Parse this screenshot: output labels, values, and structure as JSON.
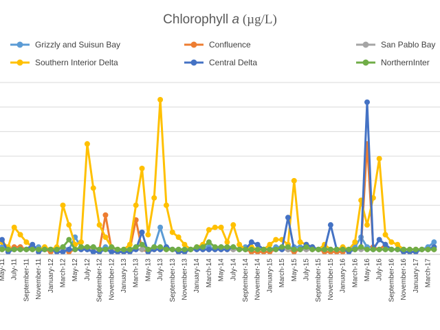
{
  "chart_data": {
    "type": "line",
    "title": "Chlorophyll a (µg/L)",
    "title_parts": {
      "prefix": "Chlorophyll ",
      "italic": "a",
      "suffix": " (µg/L)"
    },
    "xlabel": "",
    "ylabel": "",
    "ylim": [
      0,
      70
    ],
    "grid": true,
    "legend_position": "top",
    "x_tick_labels": [
      "May-11",
      "July-11",
      "September-11",
      "November-11",
      "January-12",
      "March-12",
      "May-12",
      "July-12",
      "September-12",
      "November-12",
      "January-13",
      "March-13",
      "May-13",
      "July-13",
      "September-13",
      "November-13",
      "January-14",
      "March-14",
      "May-14",
      "July-14",
      "September-14",
      "November-14",
      "January-15",
      "March-15",
      "May-15",
      "July-15",
      "September-15",
      "November-15",
      "January-16",
      "March-16",
      "May-16",
      "July-16",
      "September-16",
      "November-16",
      "January-17",
      "March-17"
    ],
    "categories": [
      "May-11",
      "Jun-11",
      "Jul-11",
      "Aug-11",
      "Sep-11",
      "Oct-11",
      "Nov-11",
      "Dec-11",
      "Jan-12",
      "Feb-12",
      "Mar-12",
      "Apr-12",
      "May-12",
      "Jun-12",
      "Jul-12",
      "Aug-12",
      "Sep-12",
      "Oct-12",
      "Nov-12",
      "Dec-12",
      "Jan-13",
      "Feb-13",
      "Mar-13",
      "Apr-13",
      "May-13",
      "Jun-13",
      "Jul-13",
      "Aug-13",
      "Sep-13",
      "Oct-13",
      "Nov-13",
      "Dec-13",
      "Jan-14",
      "Feb-14",
      "Mar-14",
      "Apr-14",
      "May-14",
      "Jun-14",
      "Jul-14",
      "Aug-14",
      "Sep-14",
      "Oct-14",
      "Nov-14",
      "Dec-14",
      "Jan-15",
      "Feb-15",
      "Mar-15",
      "Apr-15",
      "May-15",
      "Jun-15",
      "Jul-15",
      "Aug-15",
      "Sep-15",
      "Oct-15",
      "Nov-15",
      "Dec-15",
      "Jan-16",
      "Feb-16",
      "Mar-16",
      "Apr-16",
      "May-16",
      "Jun-16",
      "Jul-16",
      "Aug-16",
      "Sep-16",
      "Oct-16",
      "Nov-16",
      "Dec-16",
      "Jan-17",
      "Feb-17",
      "Mar-17",
      "Apr-17"
    ],
    "series": [
      {
        "name": "Grizzly and Suisun Bay",
        "color": "#5b9bd5",
        "values": [
          3,
          2,
          2,
          3,
          2,
          3,
          3,
          2,
          2,
          2,
          3,
          2,
          7,
          3,
          2,
          3,
          2,
          3,
          2,
          2,
          2,
          2,
          3,
          4,
          2,
          3,
          11,
          3,
          2,
          2,
          2,
          2,
          2,
          3,
          3,
          2,
          3,
          3,
          2,
          2,
          3,
          2,
          2,
          2,
          2,
          3,
          3,
          2,
          3,
          3,
          2,
          3,
          2,
          3,
          2,
          2,
          2,
          2,
          3,
          7,
          3,
          3,
          2,
          2,
          2,
          2,
          2,
          2,
          2,
          2,
          3,
          5
        ]
      },
      {
        "name": "Confluence",
        "color": "#ed7d31",
        "values": [
          2,
          2,
          3,
          3,
          2,
          2,
          2,
          2,
          1,
          2,
          2,
          1,
          2,
          2,
          3,
          2,
          2,
          16,
          2,
          1,
          1,
          2,
          14,
          2,
          1,
          2,
          2,
          2,
          2,
          1,
          1,
          2,
          2,
          2,
          2,
          2,
          2,
          2,
          2,
          2,
          2,
          1,
          1,
          1,
          1,
          2,
          2,
          2,
          1,
          2,
          2,
          2,
          2,
          1,
          1,
          1,
          1,
          2,
          2,
          3,
          45,
          3,
          2,
          4,
          2,
          2,
          1,
          1,
          1,
          2,
          2,
          2
        ]
      },
      {
        "name": "San Pablo Bay",
        "color": "#a5a5a5",
        "values": [
          2,
          2,
          2,
          2,
          2,
          2,
          2,
          2,
          2,
          2,
          2,
          2,
          2,
          2,
          2,
          2,
          2,
          2,
          2,
          2,
          2,
          2,
          2,
          2,
          2,
          2,
          2,
          2,
          2,
          2,
          2,
          2,
          2,
          2,
          2,
          2,
          2,
          2,
          2,
          2,
          2,
          2,
          2,
          2,
          2,
          2,
          2,
          2,
          2,
          2,
          2,
          2,
          2,
          2,
          2,
          2,
          2,
          2,
          2,
          2,
          2,
          2,
          2,
          2,
          2,
          2,
          2,
          2,
          2,
          2,
          2,
          2
        ]
      },
      {
        "name": "Southern Interior Delta",
        "color": "#ffc000",
        "values": [
          5,
          3,
          11,
          8,
          5,
          3,
          2,
          3,
          2,
          3,
          20,
          12,
          4,
          5,
          45,
          27,
          12,
          7,
          3,
          2,
          2,
          4,
          20,
          35,
          8,
          23,
          63,
          20,
          9,
          7,
          4,
          2,
          3,
          4,
          10,
          11,
          11,
          5,
          12,
          4,
          2,
          3,
          2,
          2,
          4,
          6,
          6,
          4,
          30,
          5,
          4,
          3,
          2,
          4,
          2,
          2,
          3,
          2,
          5,
          22,
          12,
          23,
          39,
          8,
          5,
          4,
          2,
          2,
          2,
          2,
          2,
          3
        ]
      },
      {
        "name": "Central Delta",
        "color": "#4472c4",
        "values": [
          6,
          1,
          2,
          2,
          2,
          4,
          1,
          2,
          2,
          1,
          1,
          2,
          2,
          2,
          2,
          1,
          1,
          2,
          1,
          1,
          1,
          1,
          2,
          9,
          1,
          2,
          2,
          3,
          2,
          1,
          1,
          2,
          2,
          2,
          2,
          2,
          2,
          2,
          3,
          2,
          2,
          5,
          4,
          2,
          2,
          2,
          2,
          15,
          2,
          2,
          4,
          3,
          2,
          2,
          12,
          2,
          2,
          1,
          2,
          3,
          62,
          2,
          6,
          4,
          2,
          2,
          1,
          1,
          1,
          2,
          2,
          3
        ]
      },
      {
        "name": "NorthernInter",
        "color": "#70ad47",
        "values": [
          2,
          2,
          2,
          2,
          2,
          2,
          2,
          2,
          2,
          2,
          3,
          6,
          2,
          3,
          3,
          3,
          2,
          2,
          3,
          2,
          2,
          2,
          3,
          4,
          2,
          3,
          3,
          2,
          2,
          2,
          2,
          2,
          3,
          3,
          5,
          3,
          3,
          3,
          3,
          2,
          2,
          2,
          2,
          2,
          2,
          2,
          3,
          3,
          2,
          2,
          3,
          2,
          2,
          2,
          2,
          2,
          2,
          2,
          2,
          3,
          2,
          2,
          2,
          2,
          2,
          2,
          2,
          2,
          2,
          2,
          2,
          2
        ]
      }
    ],
    "legend": [
      {
        "label": "Grizzly and Suisun Bay",
        "color": "#5b9bd5"
      },
      {
        "label": "Confluence",
        "color": "#ed7d31"
      },
      {
        "label": "San Pablo Bay",
        "color": "#a5a5a5"
      },
      {
        "label": "Southern Interior Delta",
        "color": "#ffc000"
      },
      {
        "label": "Central Delta",
        "color": "#4472c4"
      },
      {
        "label": "NorthernInter",
        "color": "#70ad47"
      }
    ]
  }
}
